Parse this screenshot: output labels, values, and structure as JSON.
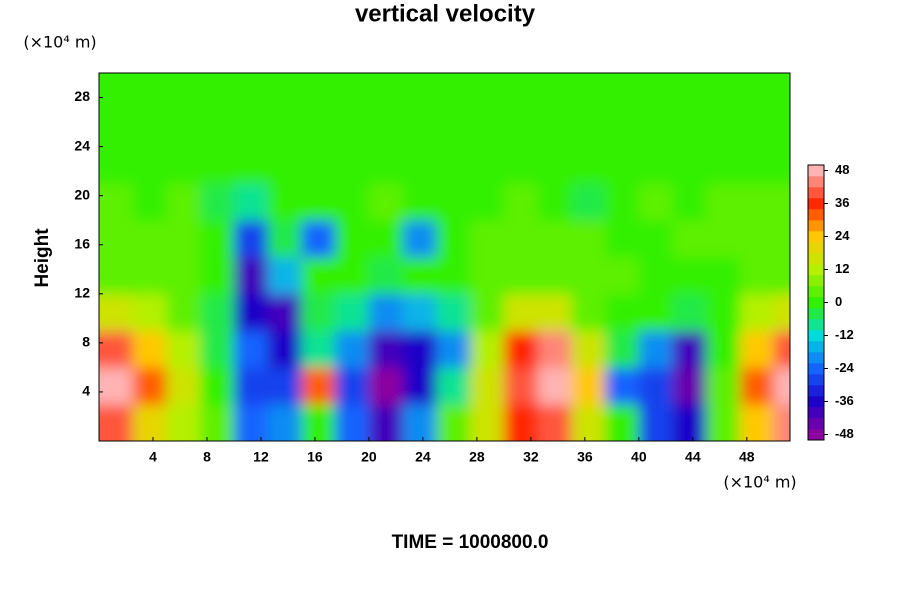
{
  "chart_data": {
    "type": "heatmap",
    "title": "vertical velocity",
    "ylabel": "Height",
    "y_unit": "(×10⁴ m)",
    "x_unit": "(×10⁴ m)",
    "footer": "TIME = 1000800.0",
    "xlim": [
      0,
      51.2
    ],
    "ylim": [
      0,
      30
    ],
    "xticks": [
      4,
      8,
      12,
      16,
      20,
      24,
      28,
      32,
      36,
      40,
      44,
      48
    ],
    "yticks": [
      4,
      8,
      12,
      16,
      20,
      24,
      28
    ],
    "xbins": [
      0,
      2.5,
      5,
      7.5,
      10,
      12.5,
      15,
      17.5,
      20,
      22.5,
      25,
      27.5,
      30,
      32.5,
      35,
      37.5,
      40,
      42.5,
      45,
      47.5,
      50,
      51.2
    ],
    "ybins": [
      0,
      3,
      6,
      9,
      12,
      15,
      18,
      21,
      24,
      27,
      30
    ],
    "values": [
      [
        40,
        20,
        12,
        5,
        -25,
        -20,
        0,
        -25,
        -40,
        -20,
        5,
        15,
        35,
        40,
        15,
        0,
        -30,
        -35,
        5,
        25,
        45
      ],
      [
        48,
        30,
        15,
        0,
        -30,
        -30,
        30,
        -30,
        -48,
        -35,
        -10,
        15,
        40,
        48,
        25,
        -25,
        -30,
        -45,
        5,
        30,
        48
      ],
      [
        40,
        25,
        10,
        -5,
        -25,
        -35,
        -10,
        -20,
        -40,
        -35,
        -20,
        10,
        35,
        45,
        15,
        -5,
        -20,
        -40,
        0,
        25,
        40
      ],
      [
        15,
        10,
        5,
        -5,
        -35,
        -40,
        -5,
        -10,
        -20,
        -15,
        -10,
        5,
        15,
        15,
        5,
        0,
        0,
        -5,
        0,
        10,
        15
      ],
      [
        5,
        5,
        3,
        0,
        -40,
        -15,
        0,
        0,
        -5,
        0,
        0,
        5,
        5,
        5,
        5,
        5,
        0,
        0,
        0,
        5,
        5
      ],
      [
        5,
        5,
        3,
        0,
        -30,
        -5,
        -25,
        0,
        0,
        -20,
        0,
        5,
        5,
        5,
        5,
        0,
        0,
        5,
        3,
        3,
        3
      ],
      [
        3,
        0,
        3,
        -5,
        -10,
        0,
        0,
        0,
        3,
        0,
        0,
        0,
        3,
        0,
        -3,
        0,
        3,
        0,
        3,
        3,
        3
      ],
      [
        0,
        0,
        0,
        0,
        0,
        0,
        0,
        0,
        0,
        0,
        0,
        0,
        0,
        0,
        0,
        0,
        0,
        0,
        0,
        0,
        0
      ],
      [
        0,
        0,
        0,
        0,
        0,
        0,
        0,
        0,
        0,
        0,
        0,
        0,
        0,
        0,
        0,
        0,
        0,
        0,
        0,
        0,
        0
      ],
      [
        0,
        0,
        0,
        0,
        0,
        0,
        0,
        0,
        0,
        0,
        0,
        0,
        0,
        0,
        0,
        0,
        0,
        0,
        0,
        0,
        0
      ]
    ],
    "clim": [
      -50,
      50
    ],
    "level_step": 4,
    "cticks": [
      -48,
      -36,
      -24,
      -12,
      0,
      12,
      24,
      36,
      48
    ],
    "colormap": [
      "#8c00a0",
      "#1e00c8",
      "#1464ff",
      "#00dcdc",
      "#32f000",
      "#b4f000",
      "#ffc800",
      "#ff2800",
      "#ffb4b4"
    ]
  }
}
